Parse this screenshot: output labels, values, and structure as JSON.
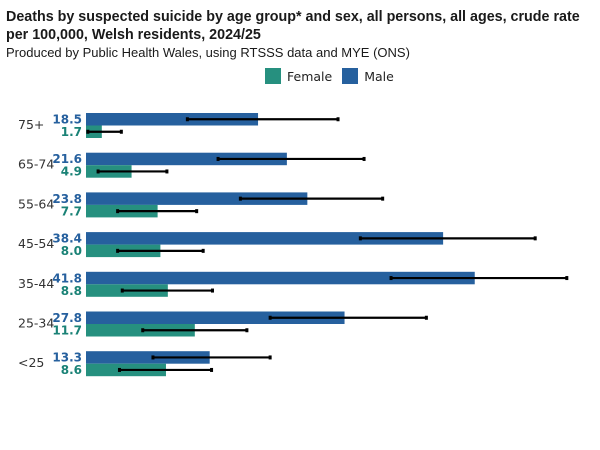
{
  "chart_data": {
    "type": "bar",
    "orientation": "horizontal",
    "title": "Deaths by suspected suicide by age group* and sex, all persons, all ages, crude rate per 100,000, Welsh residents, 2024/25",
    "subtitle": "Produced by Public Health Wales, using RTSSS data and MYE (ONS)",
    "categories": [
      "75+",
      "65-74",
      "55-64",
      "45-54",
      "35-44",
      "25-34",
      "<25"
    ],
    "series": [
      {
        "name": "Male",
        "color": "#26609e",
        "label_color": "#26609e",
        "values": [
          18.5,
          21.6,
          23.8,
          38.4,
          41.8,
          27.8,
          13.3
        ],
        "labels": [
          "18.5",
          "21.6",
          "23.8",
          "38.4",
          "41.8",
          "27.8",
          "13.3"
        ],
        "ci_low": [
          10.9,
          14.2,
          16.6,
          29.5,
          32.8,
          19.8,
          7.2
        ],
        "ci_high": [
          27.1,
          29.9,
          31.9,
          48.3,
          51.7,
          36.6,
          19.8
        ]
      },
      {
        "name": "Female",
        "color": "#26907f",
        "label_color": "#1a8276",
        "values": [
          1.7,
          4.9,
          7.7,
          8.0,
          8.8,
          11.7,
          8.6
        ],
        "labels": [
          "1.7",
          "4.9",
          "7.7",
          "8.0",
          "8.8",
          "11.7",
          "8.6"
        ],
        "ci_low": [
          0.2,
          1.3,
          3.4,
          3.4,
          3.9,
          6.1,
          3.6
        ],
        "ci_high": [
          3.8,
          8.7,
          11.9,
          12.6,
          13.6,
          17.3,
          13.5
        ]
      }
    ],
    "xlim": [
      0,
      52
    ],
    "error_bars": true,
    "grid": false,
    "legend": {
      "position": "top",
      "order": [
        "Female",
        "Male"
      ]
    }
  }
}
